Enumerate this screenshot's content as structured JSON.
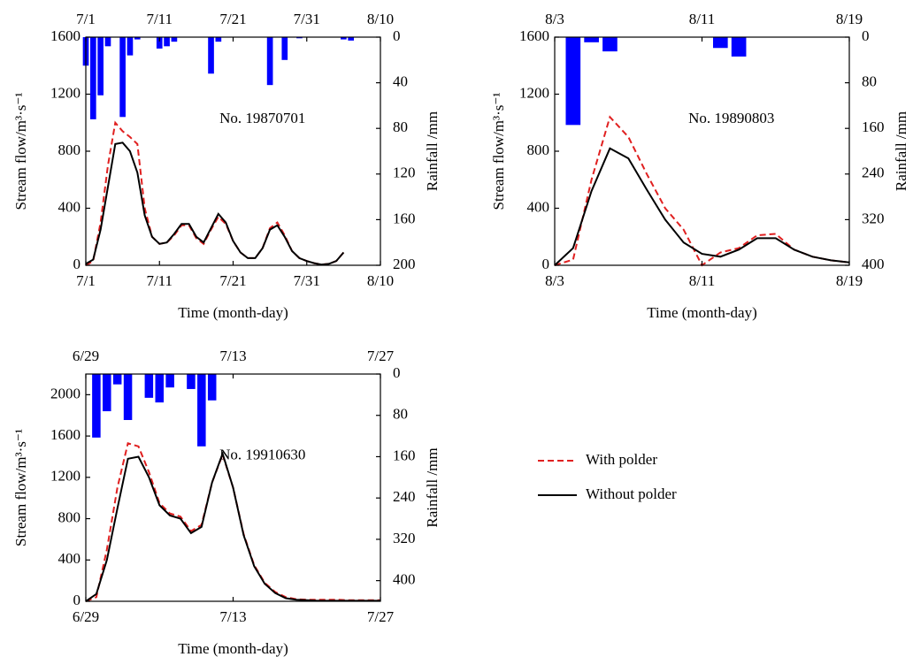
{
  "chart_data": [
    {
      "type": "line",
      "annotation": "No. 19870701",
      "xlabel": "Time (month-day)",
      "ylabel": "Stream flow/m³·s⁻¹",
      "y2label": "Rainfall /mm",
      "x": [
        "7/1",
        "7/2",
        "7/3",
        "7/4",
        "7/5",
        "7/6",
        "7/7",
        "7/8",
        "7/9",
        "7/10",
        "7/11",
        "7/12",
        "7/13",
        "7/14",
        "7/15",
        "7/16",
        "7/17",
        "7/18",
        "7/19",
        "7/20",
        "7/21",
        "7/22",
        "7/23",
        "7/24",
        "7/25",
        "7/26",
        "7/27",
        "7/28",
        "7/29",
        "7/30",
        "7/31",
        "8/1",
        "8/2",
        "8/3",
        "8/4",
        "8/5"
      ],
      "xlim": [
        "7/1",
        "8/10"
      ],
      "xticks": [
        "7/1",
        "7/11",
        "7/21",
        "7/31",
        "8/10"
      ],
      "ylim": [
        0,
        1600
      ],
      "yticks": [
        0,
        400,
        800,
        1200,
        1600
      ],
      "y2lim": [
        0,
        200
      ],
      "y2ticks": [
        0,
        40,
        80,
        120,
        160,
        200
      ],
      "y2_inverted": true,
      "series": [
        {
          "name": "With polder",
          "color": "#e02020",
          "dash": true,
          "values": [
            0,
            30,
            300,
            700,
            1000,
            940,
            900,
            850,
            400,
            200,
            150,
            160,
            210,
            280,
            280,
            190,
            150,
            250,
            340,
            290,
            170,
            90,
            50,
            50,
            120,
            260,
            300,
            210,
            100,
            50,
            30,
            15,
            5,
            10,
            30,
            90
          ]
        },
        {
          "name": "Without polder",
          "color": "#000000",
          "dash": false,
          "values": [
            10,
            40,
            250,
            550,
            850,
            860,
            800,
            650,
            350,
            200,
            150,
            160,
            220,
            290,
            290,
            200,
            160,
            260,
            360,
            300,
            170,
            90,
            50,
            50,
            120,
            250,
            280,
            200,
            100,
            50,
            30,
            15,
            5,
            10,
            30,
            90
          ]
        }
      ],
      "rainfall": {
        "axis": "y2",
        "color": "#0000ff",
        "x": [
          "7/1",
          "7/2",
          "7/3",
          "7/4",
          "7/6",
          "7/7",
          "7/8",
          "7/11",
          "7/12",
          "7/13",
          "7/18",
          "7/19",
          "7/26",
          "7/28",
          "7/30",
          "8/5",
          "8/6"
        ],
        "values": [
          25,
          72,
          51,
          8,
          70,
          16,
          2,
          10,
          8,
          4,
          32,
          4,
          42,
          20,
          1,
          2,
          3
        ]
      }
    },
    {
      "type": "line",
      "annotation": "No. 19890803",
      "xlabel": "Time (month-day)",
      "ylabel": "Stream flow/m³·s⁻¹",
      "y2label": "Rainfall /mm",
      "x": [
        "8/3",
        "8/4",
        "8/5",
        "8/6",
        "8/7",
        "8/8",
        "8/9",
        "8/10",
        "8/11",
        "8/12",
        "8/13",
        "8/14",
        "8/15",
        "8/16",
        "8/17",
        "8/18",
        "8/19"
      ],
      "xlim": [
        "8/3",
        "8/19"
      ],
      "xticks": [
        "8/3",
        "8/11",
        "8/19"
      ],
      "ylim": [
        0,
        1600
      ],
      "yticks": [
        0,
        400,
        800,
        1200,
        1600
      ],
      "y2lim": [
        0,
        400
      ],
      "y2ticks": [
        0,
        80,
        160,
        240,
        320,
        400
      ],
      "y2_inverted": true,
      "series": [
        {
          "color": "#e02020",
          "dash": true,
          "values": [
            0,
            40,
            600,
            1040,
            900,
            640,
            400,
            250,
            0,
            90,
            120,
            210,
            220,
            110,
            60,
            35,
            20
          ]
        },
        {
          "color": "#000000",
          "dash": false,
          "values": [
            0,
            120,
            520,
            820,
            750,
            530,
            320,
            160,
            80,
            60,
            110,
            190,
            190,
            110,
            60,
            35,
            20
          ]
        }
      ],
      "rainfall": {
        "axis": "y2",
        "color": "#0000ff",
        "x": [
          "8/4",
          "8/5",
          "8/6",
          "8/12",
          "8/13"
        ],
        "values": [
          154,
          9,
          25,
          19,
          34
        ]
      }
    },
    {
      "type": "line",
      "annotation": "No. 19910630",
      "xlabel": "Time (month-day)",
      "ylabel": "Stream flow/m³·s⁻¹",
      "y2label": "Rainfall /mm",
      "x": [
        "6/29",
        "6/30",
        "7/1",
        "7/2",
        "7/3",
        "7/4",
        "7/5",
        "7/6",
        "7/7",
        "7/8",
        "7/9",
        "7/10",
        "7/11",
        "7/12",
        "7/13",
        "7/14",
        "7/15",
        "7/16",
        "7/17",
        "7/18",
        "7/19",
        "7/20",
        "7/21",
        "7/22",
        "7/23",
        "7/24",
        "7/25",
        "7/26",
        "7/27"
      ],
      "xlim": [
        "6/29",
        "7/27"
      ],
      "xticks": [
        "6/29",
        "7/13",
        "7/27"
      ],
      "ylim": [
        0,
        2200
      ],
      "yticks": [
        0,
        400,
        800,
        1200,
        1600,
        2000
      ],
      "y2lim": [
        0,
        440
      ],
      "y2ticks": [
        0,
        80,
        160,
        240,
        320,
        400
      ],
      "y2_inverted": true,
      "series": [
        {
          "color": "#e02020",
          "dash": true,
          "values": [
            0,
            40,
            500,
            1100,
            1530,
            1500,
            1250,
            950,
            850,
            820,
            680,
            740,
            1150,
            1420,
            1100,
            650,
            350,
            180,
            90,
            40,
            20,
            15,
            15,
            15,
            15,
            10,
            10,
            10,
            10
          ]
        },
        {
          "color": "#000000",
          "dash": false,
          "values": [
            0,
            70,
            400,
            900,
            1380,
            1400,
            1200,
            930,
            830,
            800,
            660,
            720,
            1150,
            1430,
            1100,
            640,
            340,
            170,
            80,
            30,
            15,
            10,
            5,
            5,
            5,
            5,
            5,
            5,
            5
          ]
        }
      ],
      "rainfall": {
        "axis": "y2",
        "color": "#0000ff",
        "x": [
          "6/30",
          "7/1",
          "7/2",
          "7/3",
          "7/5",
          "7/6",
          "7/7",
          "7/9",
          "7/10",
          "7/11"
        ],
        "values": [
          123,
          72,
          20,
          89,
          46,
          55,
          26,
          29,
          140,
          51
        ]
      }
    }
  ]
}
